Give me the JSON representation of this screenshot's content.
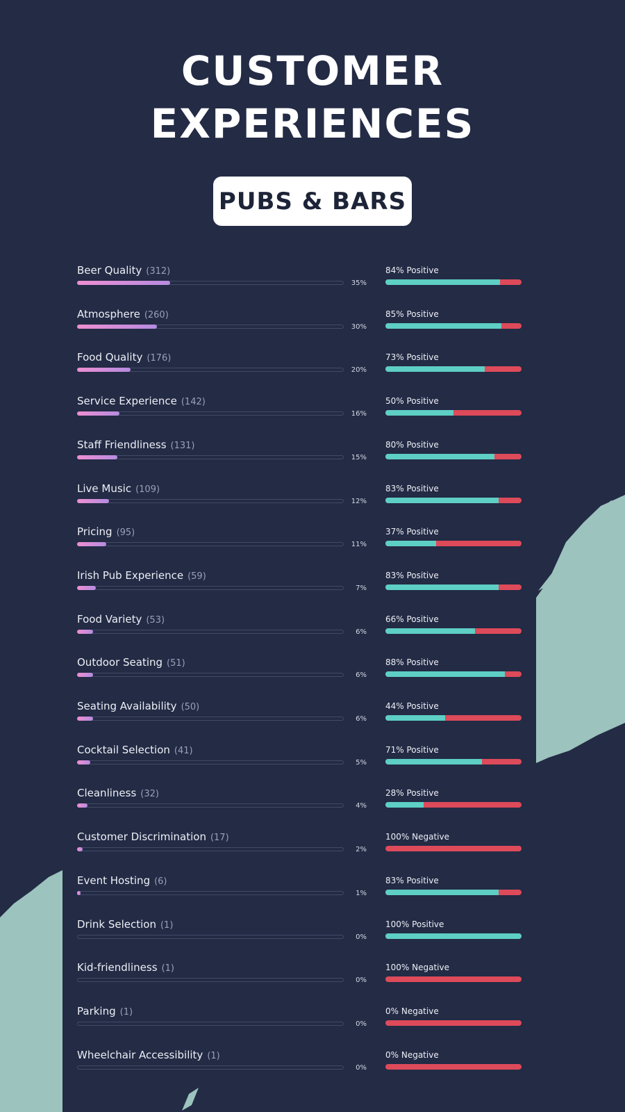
{
  "header": {
    "title_line1": "CUSTOMER",
    "title_line2": "EXPERIENCES",
    "badge": "PUBS & BARS"
  },
  "colors": {
    "background": "#232b45",
    "share_bar_gradient_start": "#ee8ed2",
    "share_bar_gradient_end": "#b58ce0",
    "positive": "#5ecfc4",
    "negative": "#dd4a5a",
    "decoration": "#9cc3bd"
  },
  "chart_data": {
    "type": "bar",
    "categories": [
      "Beer Quality",
      "Atmosphere",
      "Food Quality",
      "Service Experience",
      "Staff Friendliness",
      "Live Music",
      "Pricing",
      "Irish Pub Experience",
      "Food Variety",
      "Outdoor Seating",
      "Seating Availability",
      "Cocktail Selection",
      "Cleanliness",
      "Customer Discrimination",
      "Event Hosting",
      "Drink Selection",
      "Kid-friendliness",
      "Parking",
      "Wheelchair Accessibility"
    ],
    "counts": [
      312,
      260,
      176,
      142,
      131,
      109,
      95,
      59,
      53,
      51,
      50,
      41,
      32,
      17,
      6,
      1,
      1,
      1,
      1
    ],
    "count_labels": [
      "(312)",
      "(260)",
      "(176)",
      "(142)",
      "(131)",
      "(109)",
      "(95)",
      "(59)",
      "(53)",
      "(51)",
      "(50)",
      "(41)",
      "(32)",
      "(17)",
      "(6)",
      "(1)",
      "(1)",
      "(1)",
      "(1)"
    ],
    "share_percent": [
      35,
      30,
      20,
      16,
      15,
      12,
      11,
      7,
      6,
      6,
      6,
      5,
      4,
      2,
      1,
      0,
      0,
      0,
      0
    ],
    "share_labels": [
      "35%",
      "30%",
      "20%",
      "16%",
      "15%",
      "12%",
      "11%",
      "7%",
      "6%",
      "6%",
      "6%",
      "5%",
      "4%",
      "2%",
      "1%",
      "0%",
      "0%",
      "0%",
      "0%"
    ],
    "positive_percent": [
      84,
      85,
      73,
      50,
      80,
      83,
      37,
      83,
      66,
      88,
      44,
      71,
      28,
      0,
      83,
      100,
      0,
      0,
      0
    ],
    "sentiment_labels": [
      "84% Positive",
      "85% Positive",
      "73% Positive",
      "50% Positive",
      "80% Positive",
      "83% Positive",
      "37% Positive",
      "83% Positive",
      "66% Positive",
      "88% Positive",
      "44% Positive",
      "71% Positive",
      "28% Positive",
      "100% Negative",
      "83% Positive",
      "100% Positive",
      "100% Negative",
      "0% Negative",
      "0% Negative"
    ],
    "share_axis_max": 100,
    "sentiment_axis_max": 100
  }
}
